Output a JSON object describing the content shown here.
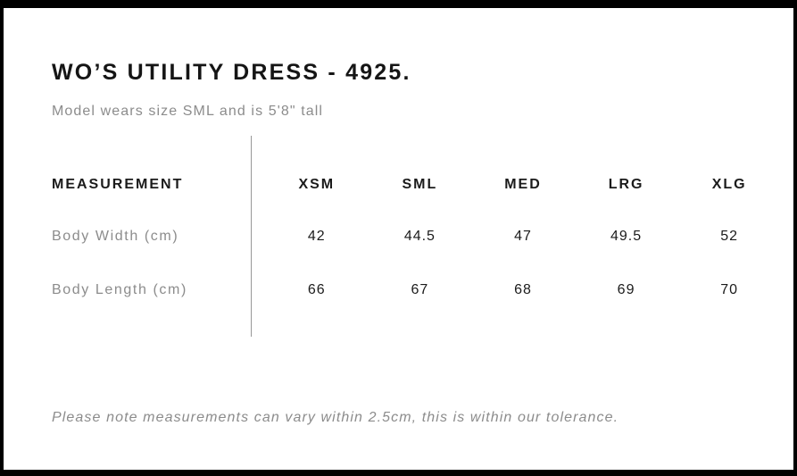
{
  "page": {
    "title": "WO’S UTILITY DRESS - 4925.",
    "subtitle": "Model wears size SML and is 5'8\" tall",
    "note": "Please note measurements can vary within 2.5cm, this is within our tolerance."
  },
  "size_chart": {
    "header_label": "MEASUREMENT",
    "sizes": [
      "XSM",
      "SML",
      "MED",
      "LRG",
      "XLG"
    ],
    "rows": [
      {
        "label": "Body Width (cm)",
        "values": [
          "42",
          "44.5",
          "47",
          "49.5",
          "52"
        ]
      },
      {
        "label": "Body Length (cm)",
        "values": [
          "66",
          "67",
          "68",
          "69",
          "70"
        ]
      }
    ]
  },
  "colors": {
    "frame": "#000000",
    "background": "#ffffff",
    "text_black": "#1b1b1b",
    "text_grey": "#8c8c8c",
    "divider": "#979797"
  }
}
